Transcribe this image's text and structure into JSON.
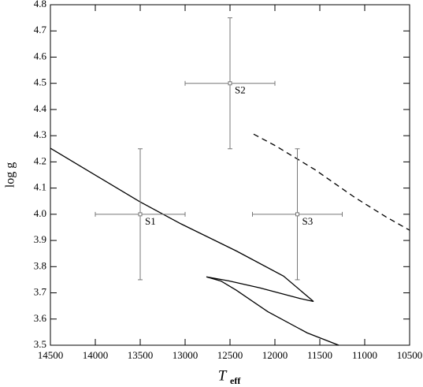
{
  "chart_data": {
    "type": "scatter",
    "xlabel": "T",
    "xlabel_subscript": "eff",
    "ylabel": "log g",
    "xlim": [
      14500,
      10500
    ],
    "ylim": [
      3.5,
      4.8
    ],
    "xticks": [
      14500,
      14000,
      13500,
      13000,
      12500,
      12000,
      11500,
      11000,
      10500
    ],
    "yticks": [
      3.5,
      3.6,
      3.7,
      3.8,
      3.9,
      {
        "value": 4,
        "label": "4.0"
      },
      4.1,
      4.2,
      4.3,
      4.4,
      4.5,
      4.6,
      4.7,
      4.8
    ],
    "points": [
      {
        "name": "S1",
        "x": 13500,
        "y": 4.0,
        "xerr": 500,
        "yerr": 0.25
      },
      {
        "name": "S2",
        "x": 12500,
        "y": 4.5,
        "xerr": 500,
        "yerr": 0.25
      },
      {
        "name": "S3",
        "x": 11750,
        "y": 4.0,
        "xerr": 500,
        "yerr": 0.25
      }
    ],
    "point_color": "#777777",
    "tracks": [
      {
        "style": "solid",
        "color": "#000000",
        "x": [
          14500,
          13500,
          13044,
          12430,
          11904,
          11570,
          11728,
          12167,
          12518,
          12763,
          12600,
          12430,
          12079,
          11640,
          11289
        ],
        "y": [
          4.252,
          4.047,
          3.963,
          3.86,
          3.764,
          3.667,
          3.679,
          3.719,
          3.746,
          3.761,
          3.745,
          3.71,
          3.628,
          3.547,
          3.5
        ]
      },
      {
        "style": "dashed",
        "color": "#000000",
        "x": [
          12237,
          11991,
          11553,
          11114,
          10763,
          10500
        ],
        "y": [
          4.306,
          4.261,
          4.17,
          4.065,
          3.99,
          3.939
        ]
      }
    ]
  }
}
